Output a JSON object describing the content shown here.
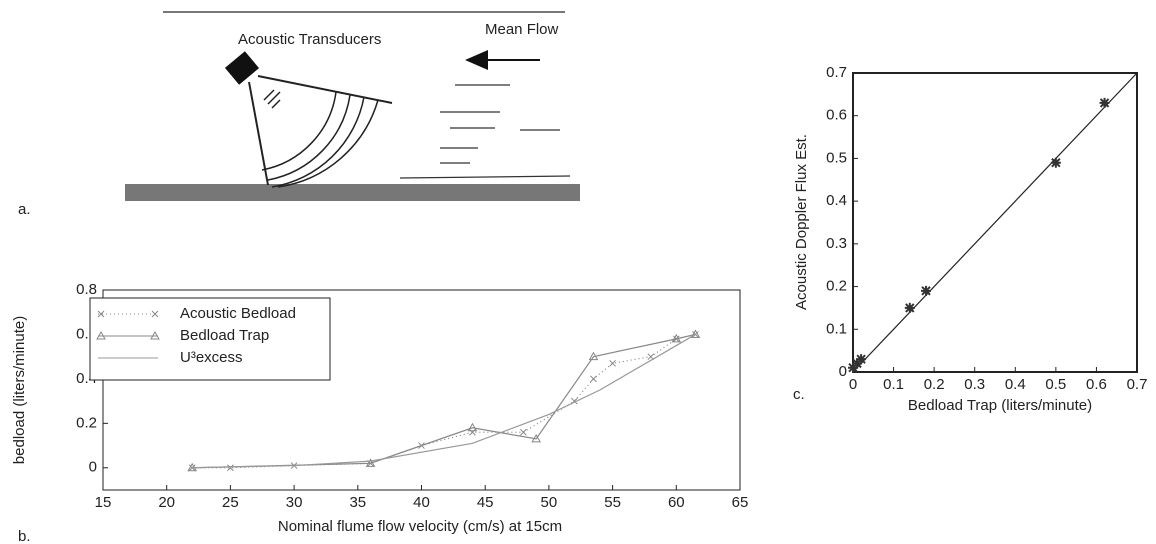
{
  "figure": {
    "diagram": {
      "panel_label": "a.",
      "transducer_label": "Acoustic Transducers",
      "flow_label": "Mean Flow"
    }
  },
  "chart_data": [
    {
      "type": "line",
      "panel_label": "b.",
      "xlabel": "Nominal flume flow velocity (cm/s) at 15cm",
      "ylabel": "bedload (liters/minute)",
      "xlim": [
        15,
        65
      ],
      "xticks": [
        15,
        20,
        25,
        30,
        35,
        40,
        45,
        50,
        55,
        60,
        65
      ],
      "ylim": [
        -0.1,
        0.8
      ],
      "yticks": [
        0,
        0.2,
        0.4,
        0.6,
        0.8
      ],
      "legend": "upper left",
      "series": [
        {
          "name": "Acoustic Bedload",
          "color": "#888888",
          "marker": "x",
          "dash": "dotted",
          "x": [
            22,
            25,
            30,
            36,
            40,
            44,
            48,
            52,
            53.5,
            55,
            58,
            60,
            61.5
          ],
          "values": [
            0,
            0,
            0.01,
            0.02,
            0.1,
            0.16,
            0.16,
            0.3,
            0.4,
            0.47,
            0.5,
            0.58,
            0.6
          ]
        },
        {
          "name": "Bedload Trap",
          "color": "#888888",
          "marker": "triangle",
          "dash": "solid",
          "x": [
            22,
            36,
            44,
            49,
            53.5,
            60,
            61.5
          ],
          "values": [
            0,
            0.02,
            0.18,
            0.13,
            0.5,
            0.58,
            0.6
          ]
        },
        {
          "name": "U³excess",
          "color": "#999999",
          "marker": "none",
          "dash": "solid",
          "x": [
            22,
            30,
            36,
            44,
            50,
            54,
            60,
            61.5
          ],
          "values": [
            0,
            0.01,
            0.03,
            0.11,
            0.24,
            0.35,
            0.55,
            0.6
          ]
        }
      ]
    },
    {
      "type": "scatter",
      "panel_label": "c.",
      "xlabel": "Bedload Trap (liters/minute)",
      "ylabel": "Acoustic Doppler Flux Est.",
      "xlim": [
        0,
        0.7
      ],
      "xticks": [
        0,
        0.1,
        0.2,
        0.3,
        0.4,
        0.5,
        0.6,
        0.7
      ],
      "ylim": [
        0,
        0.7
      ],
      "yticks": [
        0,
        0.1,
        0.2,
        0.3,
        0.4,
        0.5,
        0.6,
        0.7
      ],
      "color": "#333333",
      "x": [
        0,
        0.01,
        0.02,
        0.14,
        0.18,
        0.5,
        0.62
      ],
      "values": [
        0.01,
        0.02,
        0.03,
        0.15,
        0.19,
        0.49,
        0.63
      ]
    }
  ]
}
